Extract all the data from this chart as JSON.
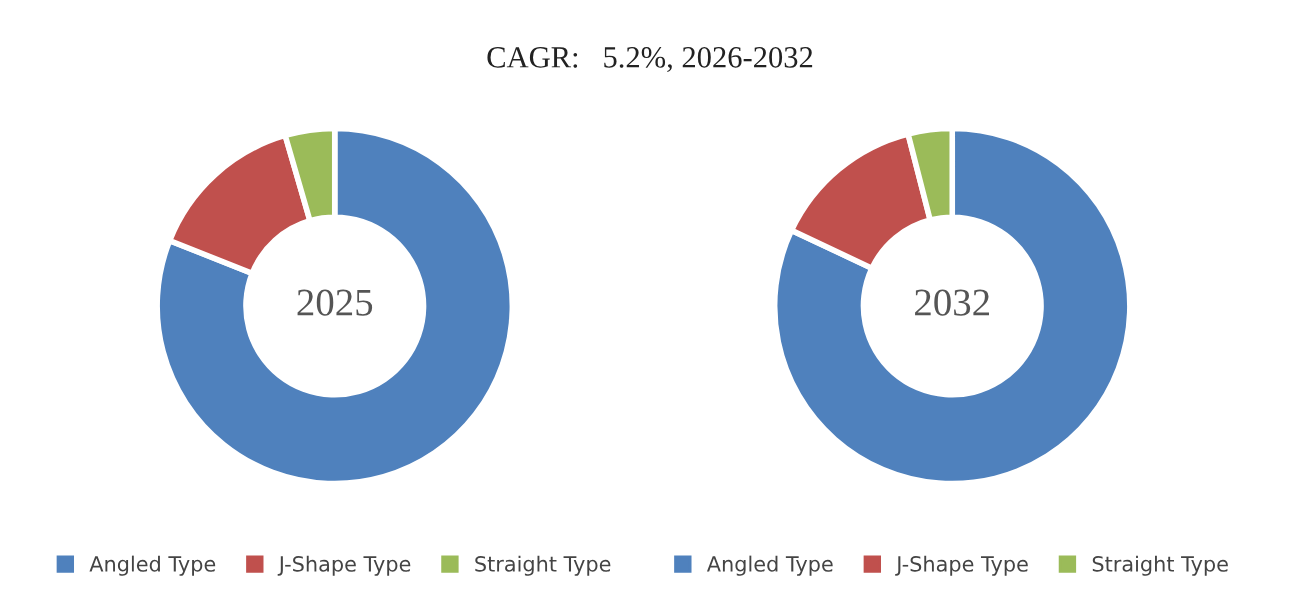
{
  "chart_data": [
    {
      "type": "donut",
      "title": "CAGR:   5.2%, 2026-2032",
      "annotations": [
        "2025"
      ],
      "categories": [
        "Angled Type",
        "J-Shape Type",
        "Straight Type"
      ],
      "values": [
        81,
        14.5,
        4.5
      ],
      "colors": [
        "#4f81bd",
        "#c0504d",
        "#9bbb59"
      ],
      "legend": "bottom"
    },
    {
      "type": "donut",
      "annotations": [
        "2032"
      ],
      "categories": [
        "Angled Type",
        "J-Shape Type",
        "Straight Type"
      ],
      "values": [
        82,
        14,
        4
      ],
      "colors": [
        "#4f81bd",
        "#c0504d",
        "#9bbb59"
      ],
      "legend": "bottom"
    }
  ]
}
